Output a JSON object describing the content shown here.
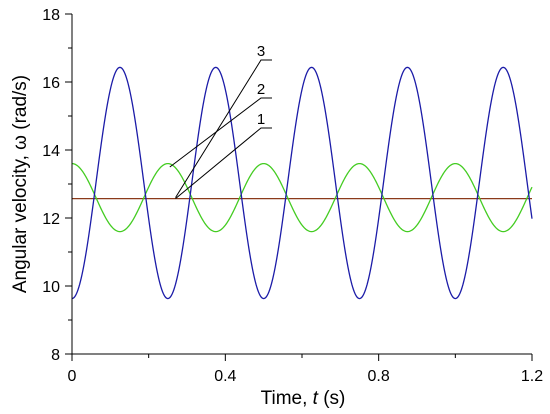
{
  "chart_data": {
    "type": "line",
    "xlabel": {
      "prefix": "Time, ",
      "var": "t",
      "suffix": " (s)"
    },
    "ylabel": "Angular velocity, ω (rad/s)",
    "xlim": [
      0,
      1.2
    ],
    "ylim": [
      8,
      18
    ],
    "xticks": [
      0,
      0.4,
      0.8,
      1.2
    ],
    "xtick_labels": [
      "0",
      "0.4",
      "0.8",
      "1.2"
    ],
    "xminor": [
      0.2,
      0.6,
      1.0
    ],
    "yticks": [
      8,
      10,
      12,
      14,
      16,
      18
    ],
    "ytick_labels": [
      "8",
      "10",
      "12",
      "14",
      "16",
      "18"
    ],
    "yminor": [
      9,
      11,
      13,
      15,
      17
    ],
    "grid": false,
    "series": [
      {
        "label": "1",
        "color": "#8b3a1a",
        "form": "constant",
        "value": 12.57
      },
      {
        "label": "2",
        "color": "#44cc22",
        "form": "cosine",
        "mean": 12.6,
        "amplitude": 1.0,
        "period": 0.25,
        "phase": 0
      },
      {
        "label": "3",
        "color": "#1c1ca8",
        "form": "cosine",
        "mean": 13.03,
        "amplitude": 3.4,
        "period": 0.25,
        "phase": 0.5
      }
    ],
    "annotations": [
      {
        "label": "3",
        "target": [
          0.27,
          12.6
        ]
      },
      {
        "label": "2",
        "target": [
          0.255,
          13.5
        ]
      },
      {
        "label": "1",
        "target": [
          0.27,
          12.57
        ]
      }
    ]
  }
}
